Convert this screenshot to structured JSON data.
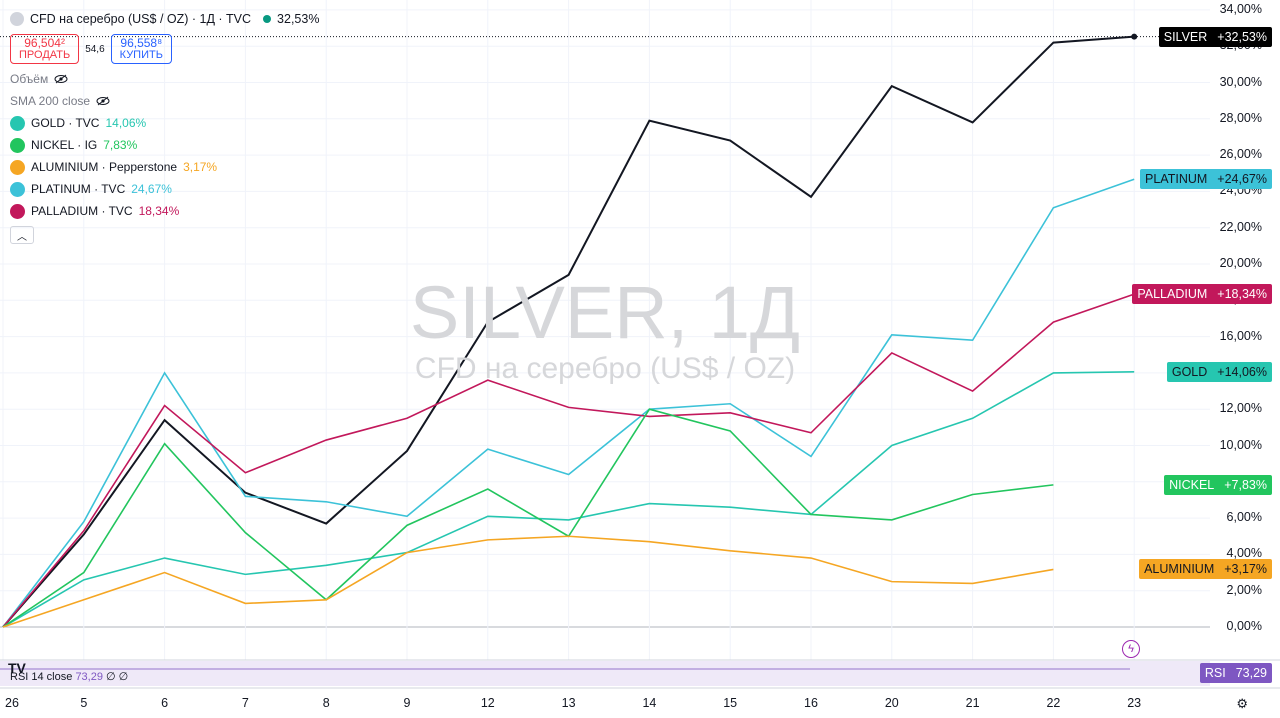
{
  "header": {
    "title": "CFD на серебро (US$ / OZ) · 1Д · TVC",
    "change": "32,53%",
    "sell_price": "96,504²",
    "sell_label": "ПРОДАТЬ",
    "spread": "54,6",
    "buy_price": "96,558⁸",
    "buy_label": "КУПИТЬ",
    "volume_label": "Объём",
    "sma_label": "SMA 200 close"
  },
  "legend_rows": [
    {
      "label": "GOLD · TVC",
      "value": "14,06%",
      "color": "#26c6b0"
    },
    {
      "label": "NICKEL · IG",
      "value": "7,83%",
      "color": "#22c55e"
    },
    {
      "label": "ALUMINIUM · Pepperstone",
      "value": "3,17%",
      "color": "#f5a623"
    },
    {
      "label": "PLATINUM · TVC",
      "value": "24,67%",
      "color": "#3cc2d8"
    },
    {
      "label": "PALLADIUM · TVC",
      "value": "18,34%",
      "color": "#c2185b"
    }
  ],
  "watermark": {
    "line1": "SILVER, 1Д",
    "line2": "CFD на серебро (US$ / OZ)"
  },
  "rsi": {
    "label": "RSI 14 close",
    "value": "73,29",
    "extra": "∅ ∅",
    "tag": "RSI",
    "tag_value": "73,29"
  },
  "chart_data": {
    "type": "line",
    "x": [
      "26",
      "5",
      "6",
      "7",
      "8",
      "9",
      "12",
      "13",
      "14",
      "15",
      "16",
      "20",
      "21",
      "22",
      "23"
    ],
    "ylim": [
      -1,
      34
    ],
    "y_ticks": [
      "34,00%",
      "32,00%",
      "30,00%",
      "28,00%",
      "26,00%",
      "24,00%",
      "22,00%",
      "20,00%",
      "18,00%",
      "16,00%",
      "14,00%",
      "12,00%",
      "10,00%",
      "8,00%",
      "6,00%",
      "4,00%",
      "2,00%",
      "0,00%"
    ],
    "y_tick_values": [
      34,
      32,
      30,
      28,
      26,
      24,
      22,
      20,
      18,
      16,
      14,
      12,
      10,
      8,
      6,
      4,
      2,
      0
    ],
    "series": [
      {
        "name": "SILVER",
        "tag": "+32,53%",
        "color": "#131722",
        "tag_bg": "#000000",
        "values": [
          0,
          5.1,
          11.4,
          7.4,
          5.7,
          9.7,
          16.8,
          19.4,
          27.9,
          26.8,
          23.7,
          29.8,
          27.8,
          32.2,
          32.53
        ]
      },
      {
        "name": "PLATINUM",
        "tag": "+24,67%",
        "color": "#3cc2d8",
        "tag_bg": "#3cc2d8",
        "tag_text": "#131722",
        "values": [
          0,
          5.8,
          14.0,
          7.2,
          6.9,
          6.1,
          9.8,
          8.4,
          12.0,
          12.3,
          9.4,
          16.1,
          15.8,
          23.1,
          24.67
        ]
      },
      {
        "name": "PALLADIUM",
        "tag": "+18,34%",
        "color": "#c2185b",
        "tag_bg": "#c2185b",
        "values": [
          0,
          5.3,
          12.2,
          8.5,
          10.3,
          11.5,
          13.6,
          12.1,
          11.6,
          11.8,
          10.7,
          15.1,
          13.0,
          16.8,
          18.34
        ]
      },
      {
        "name": "GOLD",
        "tag": "+14,06%",
        "color": "#26c6b0",
        "tag_bg": "#26c6b0",
        "tag_text": "#131722",
        "values": [
          0,
          2.6,
          3.8,
          2.9,
          3.4,
          4.1,
          6.1,
          5.9,
          6.8,
          6.6,
          6.2,
          10.0,
          11.5,
          14.0,
          14.06
        ]
      },
      {
        "name": "NICKEL",
        "tag": "+7,83%",
        "color": "#22c55e",
        "tag_bg": "#22c55e",
        "values": [
          0,
          3.0,
          10.1,
          5.2,
          1.5,
          5.6,
          7.6,
          5.0,
          12.0,
          10.8,
          6.2,
          5.9,
          7.3,
          7.83,
          null
        ]
      },
      {
        "name": "ALUMINIUM",
        "tag": "+3,17%",
        "color": "#f5a623",
        "tag_bg": "#f5a623",
        "tag_text": "#131722",
        "values": [
          0,
          1.5,
          3.0,
          1.3,
          1.5,
          4.1,
          4.8,
          5.0,
          4.7,
          4.2,
          3.8,
          2.5,
          2.4,
          3.17,
          null
        ]
      }
    ]
  }
}
